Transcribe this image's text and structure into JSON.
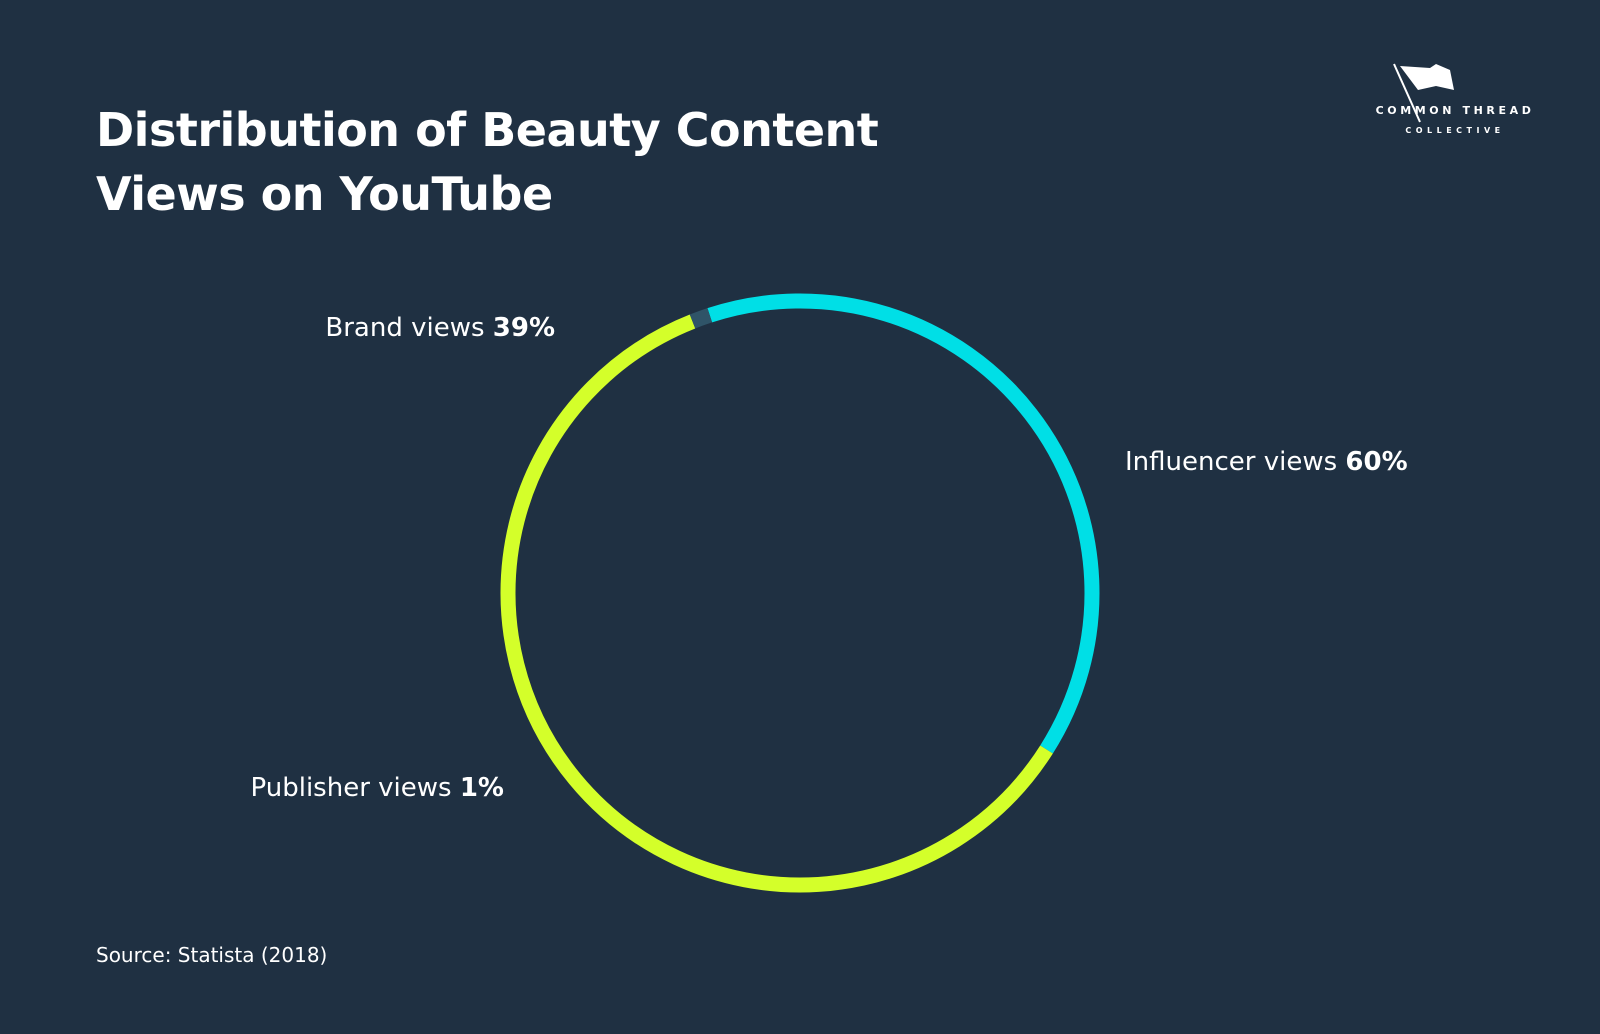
{
  "title": {
    "line1": "Distribution of Beauty Content",
    "line2": "Views on YouTube"
  },
  "logo": {
    "name": "COMMON THREAD",
    "sub": "COLLECTIVE"
  },
  "source": "Source: Statista (2018)",
  "chart_data": {
    "type": "pie",
    "style": "donut-ring",
    "categories": [
      "Brand views",
      "Influencer views",
      "Publisher views"
    ],
    "values": [
      39,
      60,
      1
    ],
    "value_labels": [
      "39%",
      "60%",
      "1%"
    ],
    "colors": [
      "#00dfe6",
      "#d4ff2a",
      "#2f5468"
    ],
    "title": "Distribution of Beauty Content Views on YouTube"
  }
}
